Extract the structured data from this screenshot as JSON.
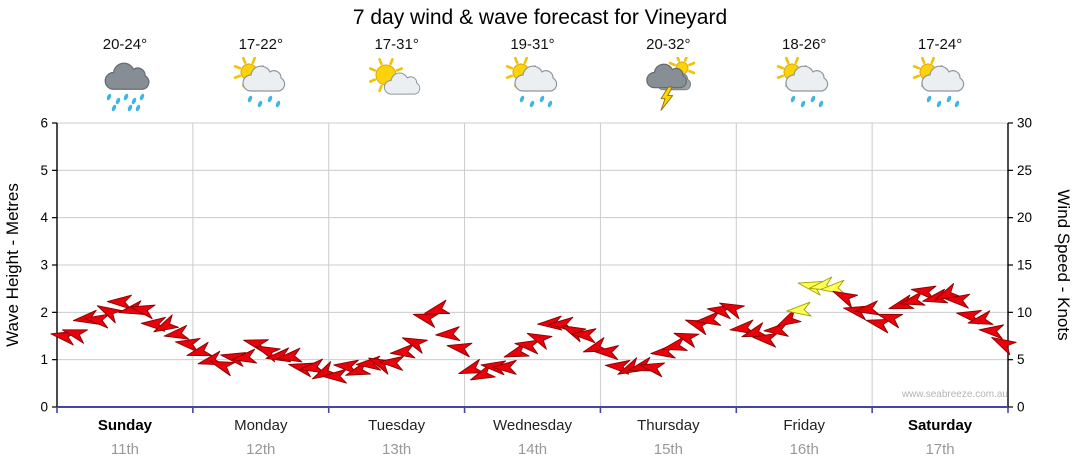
{
  "title": "7 day wind & wave forecast for Vineyard",
  "watermark": "www.seabreeze.com.au",
  "left_axis": {
    "label": "Wave Height - Metres",
    "min": 0,
    "max": 6,
    "ticks": [
      0,
      1,
      2,
      3,
      4,
      5,
      6
    ]
  },
  "right_axis": {
    "label": "Wind Speed - Knots",
    "min": 0,
    "max": 30,
    "ticks": [
      0,
      5,
      10,
      15,
      20,
      25,
      30
    ]
  },
  "days": [
    {
      "name": "Sunday",
      "date": "11th",
      "temp": "20-24°",
      "icon": "rain",
      "weekend": true
    },
    {
      "name": "Monday",
      "date": "12th",
      "temp": "17-22°",
      "icon": "sun-cloud-rain",
      "weekend": false
    },
    {
      "name": "Tuesday",
      "date": "13th",
      "temp": "17-31°",
      "icon": "sun-cloud",
      "weekend": false
    },
    {
      "name": "Wednesday",
      "date": "14th",
      "temp": "19-31°",
      "icon": "sun-cloud-rain",
      "weekend": false
    },
    {
      "name": "Thursday",
      "date": "15th",
      "temp": "20-32°",
      "icon": "thunderstorm",
      "weekend": false
    },
    {
      "name": "Friday",
      "date": "16th",
      "temp": "18-26°",
      "icon": "sun-cloud-rain",
      "weekend": false
    },
    {
      "name": "Saturday",
      "date": "17th",
      "temp": "17-24°",
      "icon": "sun-cloud-rain",
      "weekend": true
    }
  ],
  "chart_data": {
    "type": "scatter",
    "marker": "wind-arrow",
    "series_name": "Wind speed",
    "units": "knots",
    "x_description": "7 days, 12 samples per day (2-hour steps), Sunday 11th to Saturday 17th",
    "points_per_day": 12,
    "wind_knots": [
      7.5,
      8,
      9,
      9.5,
      10,
      11,
      10.5,
      10,
      9,
      8.5,
      7.5,
      7,
      5.5,
      5,
      4.5,
      5,
      5.5,
      6.5,
      6,
      5.5,
      5,
      4.5,
      4,
      3.5,
      3.5,
      4,
      4,
      4.5,
      4.5,
      5,
      5.5,
      7,
      9.5,
      10,
      8,
      6,
      4,
      3.5,
      4,
      4.5,
      5.5,
      6.5,
      7.5,
      8.5,
      9,
      8,
      7.5,
      6.5,
      5.5,
      4.5,
      4,
      4,
      4.5,
      5.5,
      6.5,
      7.5,
      8.5,
      9.5,
      10,
      10.5,
      8.5,
      7.5,
      7.5,
      8,
      9,
      10.5,
      12.5,
      13,
      12.5,
      11.5,
      10.5,
      10,
      9,
      9.5,
      10.5,
      11.5,
      12,
      11.5,
      12,
      11,
      10,
      9,
      8,
      7
    ],
    "highlight_yellow_indices": [
      65,
      66,
      67,
      68
    ],
    "wave_axis_equivalent": "left axis metres = knots / 5 on same gridlines",
    "ylim_knots": [
      0,
      30
    ],
    "grid": true,
    "colors": {
      "arrow_fill": "#e8000b",
      "arrow_stroke": "#8b0000",
      "highlight_fill": "#ffff55",
      "highlight_stroke": "#a0a000",
      "grid": "#cccccc",
      "axis": "#000000",
      "baseline": "#4444aa",
      "date_text": "#999999"
    }
  }
}
